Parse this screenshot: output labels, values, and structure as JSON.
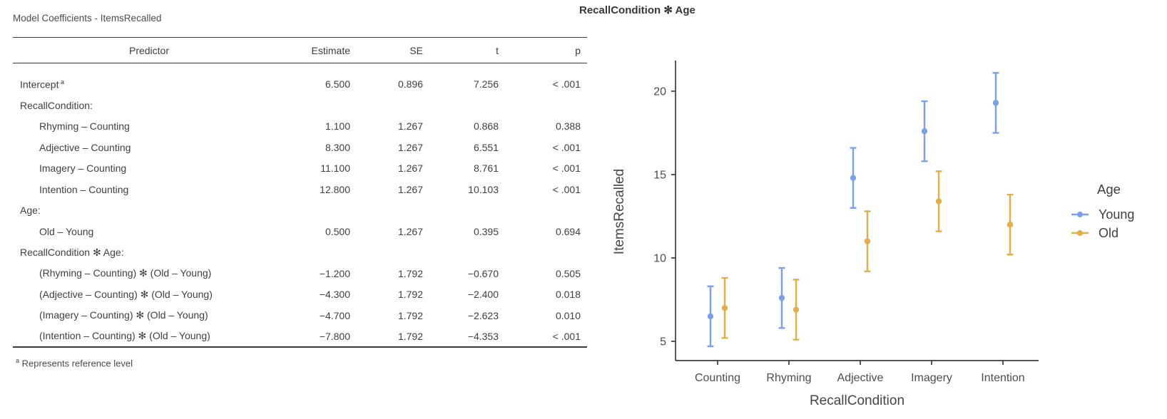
{
  "table": {
    "title": "Model Coefficients - ItemsRecalled",
    "columns": {
      "predictor": "Predictor",
      "estimate": "Estimate",
      "se": "SE",
      "t": "t",
      "p": "p"
    },
    "rows": [
      {
        "label": "Intercept",
        "sup": "a",
        "indent": 0,
        "estimate": "6.500",
        "se": "0.896",
        "t": "7.256",
        "p": "< .001"
      },
      {
        "label": "RecallCondition:",
        "indent": 0,
        "group": true,
        "estimate": "",
        "se": "",
        "t": "",
        "p": ""
      },
      {
        "label": "Rhyming – Counting",
        "indent": 1,
        "estimate": "1.100",
        "se": "1.267",
        "t": "0.868",
        "p": "0.388"
      },
      {
        "label": "Adjective – Counting",
        "indent": 1,
        "estimate": "8.300",
        "se": "1.267",
        "t": "6.551",
        "p": "< .001"
      },
      {
        "label": "Imagery – Counting",
        "indent": 1,
        "estimate": "11.100",
        "se": "1.267",
        "t": "8.761",
        "p": "< .001"
      },
      {
        "label": "Intention – Counting",
        "indent": 1,
        "estimate": "12.800",
        "se": "1.267",
        "t": "10.103",
        "p": "< .001"
      },
      {
        "label": "Age:",
        "indent": 0,
        "group": true,
        "estimate": "",
        "se": "",
        "t": "",
        "p": ""
      },
      {
        "label": "Old – Young",
        "indent": 1,
        "estimate": "0.500",
        "se": "1.267",
        "t": "0.395",
        "p": "0.694"
      },
      {
        "label": "RecallCondition ✻ Age:",
        "indent": 0,
        "group": true,
        "estimate": "",
        "se": "",
        "t": "",
        "p": ""
      },
      {
        "label": "(Rhyming – Counting) ✻ (Old – Young)",
        "indent": 1,
        "estimate": "−1.200",
        "se": "1.792",
        "t": "−0.670",
        "p": "0.505"
      },
      {
        "label": "(Adjective – Counting) ✻ (Old – Young)",
        "indent": 1,
        "estimate": "−4.300",
        "se": "1.792",
        "t": "−2.400",
        "p": "0.018"
      },
      {
        "label": "(Imagery – Counting) ✻ (Old – Young)",
        "indent": 1,
        "estimate": "−4.700",
        "se": "1.792",
        "t": "−2.623",
        "p": "0.010"
      },
      {
        "label": "(Intention – Counting) ✻ (Old – Young)",
        "indent": 1,
        "estimate": "−7.800",
        "se": "1.792",
        "t": "−4.353",
        "p": "< .001"
      }
    ],
    "footnote_marker": "a",
    "footnote": "Represents reference level"
  },
  "plot": {
    "title": "RecallCondition ✻ Age"
  },
  "chart_data": {
    "type": "scatter",
    "subtype": "point-range-with-error-bars",
    "title": "RecallCondition ✻ Age",
    "xlabel": "RecallCondition",
    "ylabel": "ItemsRecalled",
    "categories": [
      "Counting",
      "Rhyming",
      "Adjective",
      "Imagery",
      "Intention"
    ],
    "series": [
      {
        "name": "Young",
        "color": "#7aa1e8",
        "values": [
          6.5,
          7.6,
          14.8,
          17.6,
          19.3
        ],
        "ci_low": [
          4.7,
          5.8,
          13.0,
          15.8,
          17.5
        ],
        "ci_high": [
          8.3,
          9.4,
          16.6,
          19.4,
          21.1
        ]
      },
      {
        "name": "Old",
        "color": "#e2ae4a",
        "values": [
          7.0,
          6.9,
          11.0,
          13.4,
          12.0
        ],
        "ci_low": [
          5.2,
          5.1,
          9.2,
          11.6,
          10.2
        ],
        "ci_high": [
          8.8,
          8.7,
          12.8,
          15.2,
          13.8
        ]
      }
    ],
    "yticks": [
      5,
      10,
      15,
      20
    ],
    "ylim": [
      3.8,
      21.9
    ],
    "grid": false,
    "legend_title": "Age",
    "legend_position": "right"
  }
}
